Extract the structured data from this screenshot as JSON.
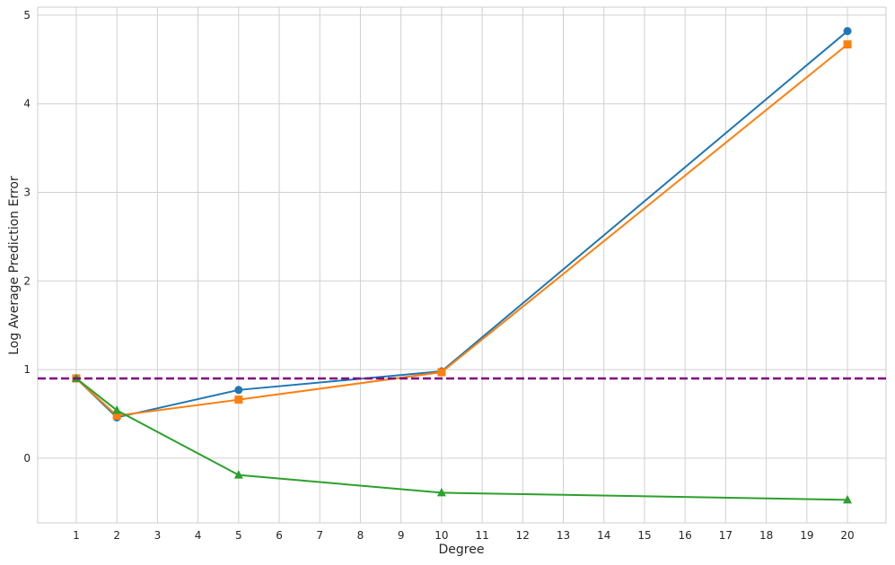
{
  "chart_data": {
    "type": "line",
    "xlabel": "Degree",
    "ylabel": "Log Average Prediction Error",
    "x": [
      1,
      2,
      5,
      10,
      20
    ],
    "series": [
      {
        "color": "#1f77b4",
        "marker": "circle",
        "values": [
          0.9,
          0.46,
          0.77,
          0.98,
          4.82
        ]
      },
      {
        "color": "#ff7f0e",
        "marker": "square",
        "values": [
          0.9,
          0.48,
          0.66,
          0.97,
          4.67
        ]
      },
      {
        "color": "#2ca02c",
        "marker": "triangle",
        "values": [
          0.9,
          0.54,
          -0.19,
          -0.39,
          -0.47
        ]
      }
    ],
    "reference_line": {
      "value": 0.9,
      "color": "#800080",
      "style": "dashed"
    },
    "xlim": [
      0.05,
      20.95
    ],
    "xticks": [
      1,
      2,
      3,
      4,
      5,
      6,
      7,
      8,
      9,
      10,
      11,
      12,
      13,
      14,
      15,
      16,
      17,
      18,
      19,
      20
    ],
    "ylim": [
      -0.73,
      5.09
    ],
    "yticks": [
      0,
      1,
      2,
      3,
      4,
      5
    ],
    "grid": true
  }
}
